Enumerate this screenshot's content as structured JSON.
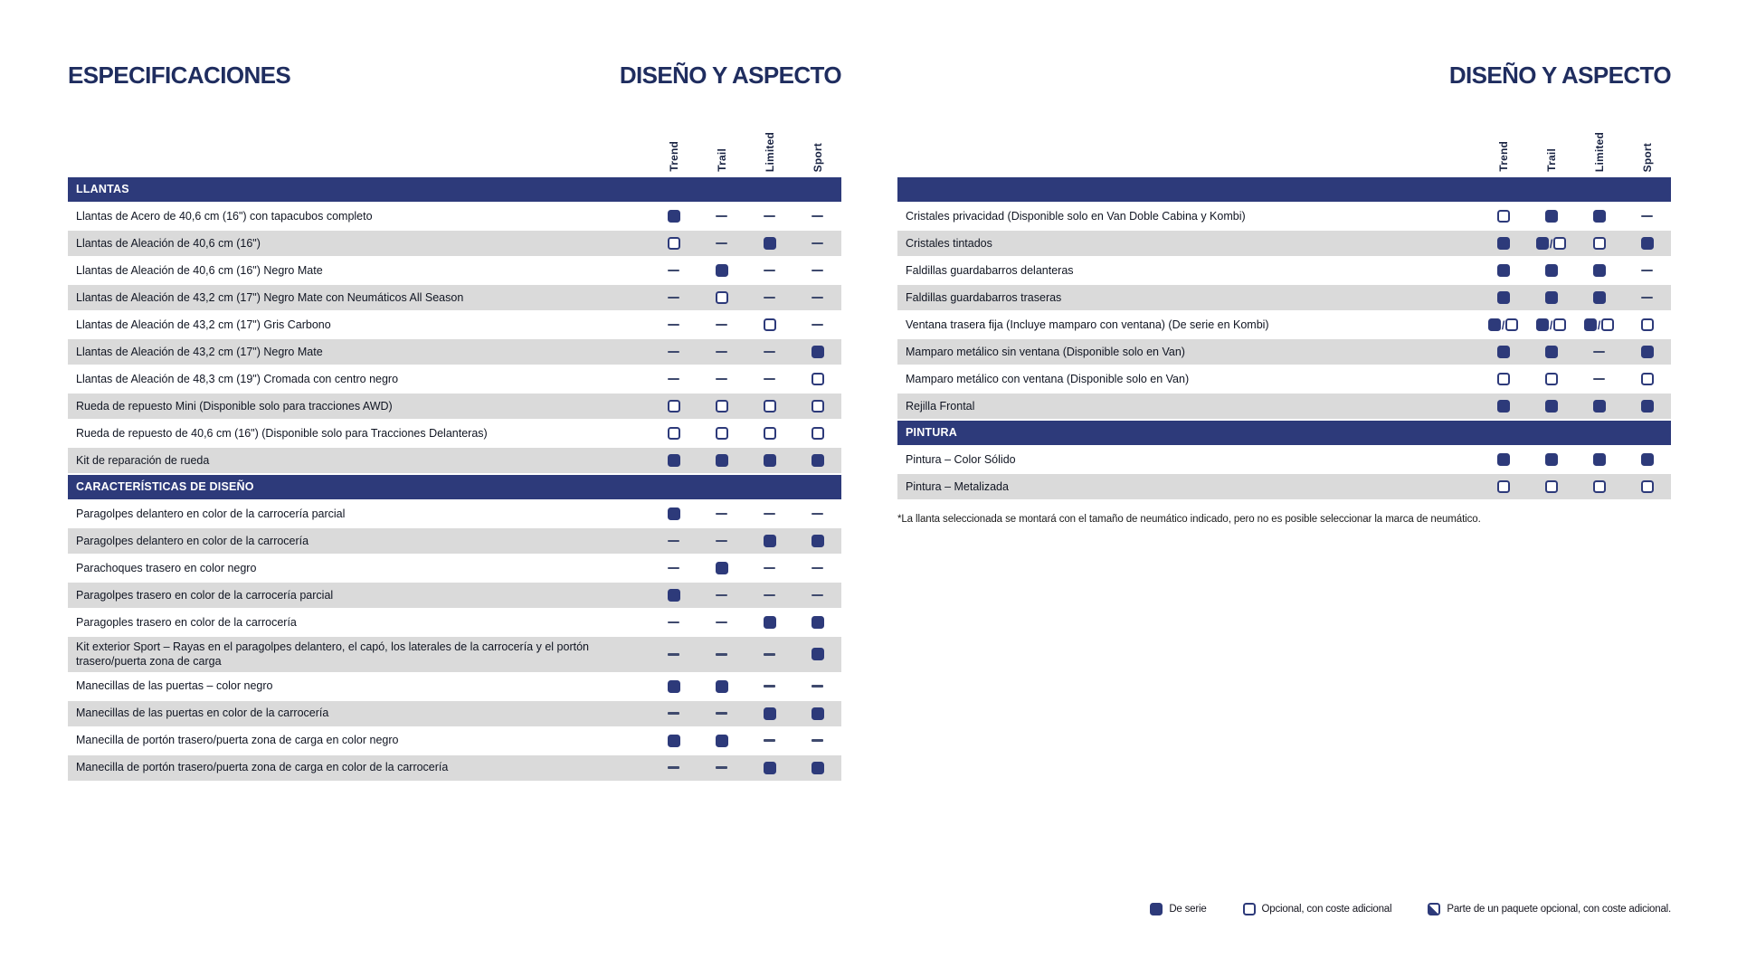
{
  "page": {
    "title": "ESPECIFICACIONES",
    "section_title": "DISEÑO Y ASPECTO"
  },
  "columns": [
    "Trend",
    "Trail",
    "Limited",
    "Sport"
  ],
  "colors": {
    "navy": "#2d3a7a",
    "heading_navy": "#1f2d5f",
    "row_alt_gray": "#dadada",
    "dash": "#3f4a6e"
  },
  "left_table": {
    "sections": [
      {
        "title": "LLANTAS",
        "rows": [
          {
            "label": "Llantas de Acero de 40,6 cm (16\") con tapacubos completo",
            "values": [
              "de-serie",
              "-",
              "-",
              "-"
            ]
          },
          {
            "label": "Llantas de Aleación de 40,6 cm (16\")",
            "values": [
              "opcional",
              "-",
              "de-serie",
              "-"
            ]
          },
          {
            "label": "Llantas de Aleación de 40,6 cm (16\") Negro Mate",
            "values": [
              "-",
              "de-serie",
              "-",
              "-"
            ]
          },
          {
            "label": "Llantas de Aleación de 43,2 cm (17\") Negro Mate con Neumáticos All Season",
            "values": [
              "-",
              "opcional",
              "-",
              "-"
            ]
          },
          {
            "label": "Llantas de Aleación de 43,2 cm (17\") Gris Carbono",
            "values": [
              "-",
              "-",
              "opcional",
              "-"
            ]
          },
          {
            "label": "Llantas de Aleación de 43,2 cm (17\") Negro Mate",
            "values": [
              "-",
              "-",
              "-",
              "de-serie"
            ]
          },
          {
            "label": "Llantas de Aleación de 48,3 cm (19\") Cromada con centro negro",
            "values": [
              "-",
              "-",
              "-",
              "opcional"
            ]
          },
          {
            "label": "Rueda de repuesto Mini (Disponible solo para tracciones AWD)",
            "values": [
              "opcional",
              "opcional",
              "opcional",
              "opcional"
            ]
          },
          {
            "label": "Rueda de repuesto de 40,6 cm (16\") (Disponible solo para Tracciones Delanteras)",
            "values": [
              "opcional",
              "opcional",
              "opcional",
              "opcional"
            ]
          },
          {
            "label": "Kit de reparación de rueda",
            "values": [
              "de-serie",
              "de-serie",
              "de-serie",
              "de-serie"
            ]
          }
        ]
      },
      {
        "title": "CARACTERÍSTICAS DE DISEÑO",
        "rows": [
          {
            "label": "Paragolpes delantero en color de la carrocería parcial",
            "values": [
              "de-serie",
              "-",
              "-",
              "-"
            ]
          },
          {
            "label": "Paragolpes delantero en color de la carrocería",
            "values": [
              "-",
              "-",
              "de-serie",
              "de-serie"
            ]
          },
          {
            "label": "Parachoques trasero en color negro",
            "values": [
              "-",
              "de-serie",
              "-",
              "-"
            ]
          },
          {
            "label": "Paragolpes trasero en color de la carrocería parcial",
            "values": [
              "de-serie",
              "-",
              "-",
              "-"
            ]
          },
          {
            "label": "Paragoples trasero en color de la carrocería",
            "values": [
              "-",
              "-",
              "de-serie",
              "de-serie"
            ]
          },
          {
            "label": "Kit exterior Sport – Rayas en el paragolpes delantero, el capó, los laterales de la carrocería y el portón trasero/puerta zona de carga",
            "values": [
              "-",
              "-",
              "-",
              "de-serie"
            ]
          },
          {
            "label": "Manecillas de las puertas – color negro",
            "values": [
              "de-serie",
              "de-serie",
              "-",
              "-"
            ]
          },
          {
            "label": "Manecillas de las puertas en color de la carrocería",
            "values": [
              "-",
              "-",
              "de-serie",
              "de-serie"
            ]
          },
          {
            "label": "Manecilla de portón trasero/puerta zona de carga en color negro",
            "values": [
              "de-serie",
              "de-serie",
              "-",
              "-"
            ]
          },
          {
            "label": "Manecilla de portón trasero/puerta zona de carga en color de la carrocería",
            "values": [
              "-",
              "-",
              "de-serie",
              "de-serie"
            ]
          }
        ]
      }
    ]
  },
  "right_table": {
    "sections": [
      {
        "title": "",
        "rows": [
          {
            "label": "Cristales privacidad (Disponible solo en Van Doble Cabina y Kombi)",
            "values": [
              "opcional",
              "de-serie",
              "de-serie",
              "-"
            ]
          },
          {
            "label": "Cristales tintados",
            "values": [
              "de-serie",
              "de-serie/opcional",
              "opcional",
              "de-serie"
            ]
          },
          {
            "label": "Faldillas guardabarros delanteras",
            "values": [
              "de-serie",
              "de-serie",
              "de-serie",
              "-"
            ]
          },
          {
            "label": "Faldillas guardabarros traseras",
            "values": [
              "de-serie",
              "de-serie",
              "de-serie",
              "-"
            ]
          },
          {
            "label": "Ventana trasera fija (Incluye mamparo con ventana) (De serie en Kombi)",
            "values": [
              "de-serie/opcional",
              "de-serie/opcional",
              "de-serie/opcional",
              "opcional"
            ]
          },
          {
            "label": "Mamparo metálico sin ventana (Disponible solo en Van)",
            "values": [
              "de-serie",
              "de-serie",
              "-",
              "de-serie"
            ]
          },
          {
            "label": "Mamparo metálico con ventana (Disponible solo en Van)",
            "values": [
              "opcional",
              "opcional",
              "-",
              "opcional"
            ]
          },
          {
            "label": "Rejilla Frontal",
            "values": [
              "de-serie",
              "de-serie",
              "de-serie",
              "de-serie"
            ]
          }
        ]
      },
      {
        "title": "PINTURA",
        "rows": [
          {
            "label": "Pintura – Color Sólido",
            "values": [
              "de-serie",
              "de-serie",
              "de-serie",
              "de-serie"
            ]
          },
          {
            "label": "Pintura – Metalizada",
            "values": [
              "opcional",
              "opcional",
              "opcional",
              "opcional"
            ]
          }
        ]
      }
    ],
    "footnote": "*La llanta seleccionada se montará con el tamaño de neumático indicado, pero no es posible seleccionar la marca de neumático."
  },
  "legend": {
    "items": [
      {
        "symbol": "de-serie",
        "label": "De serie"
      },
      {
        "symbol": "opcional",
        "label": "Opcional, con coste adicional"
      },
      {
        "symbol": "paquete-opcional",
        "label": "Parte de un paquete opcional, con coste adicional."
      }
    ]
  }
}
